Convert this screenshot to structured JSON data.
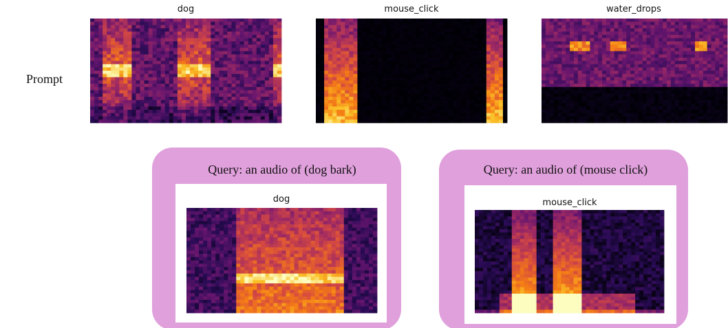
{
  "prompt_label": "Prompt",
  "prompt_spectrograms": [
    {
      "title": "dog"
    },
    {
      "title": "mouse_click"
    },
    {
      "title": "water_drops"
    }
  ],
  "queries": [
    {
      "label": "Query: an audio of (dog bark)",
      "title": "dog"
    },
    {
      "label": "Query: an audio of (mouse click)",
      "title": "mouse_click"
    }
  ]
}
